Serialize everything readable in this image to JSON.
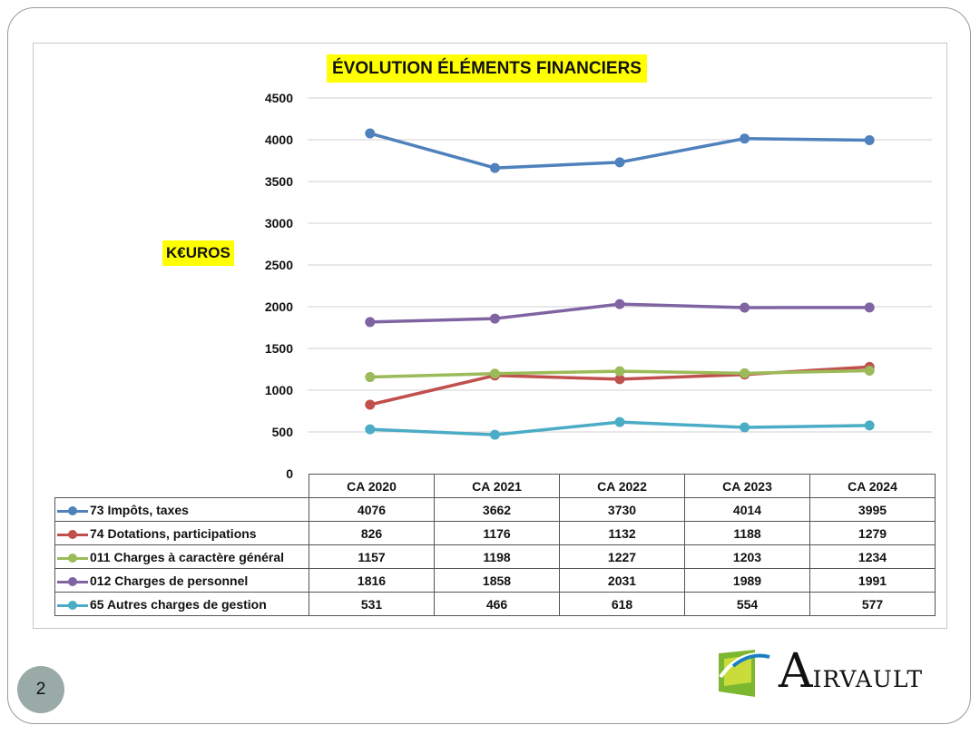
{
  "slide": {
    "page_number": "2",
    "logo": {
      "name": "airvault-logo",
      "first_letter": "A",
      "rest": "IRVAULT",
      "colors": [
        "#7cb82f",
        "#c9dc3c",
        "#1a7fc1"
      ]
    }
  },
  "chart_data": {
    "type": "line",
    "title": "ÉVOLUTION ÉLÉMENTS FINANCIERS",
    "ylabel": "K€UROS",
    "xlabel": "",
    "categories": [
      "CA 2020",
      "CA 2021",
      "CA 2022",
      "CA 2023",
      "CA 2024"
    ],
    "ylim": [
      0,
      4500
    ],
    "yticks": [
      "0",
      "500",
      "1000",
      "1500",
      "2000",
      "2500",
      "3000",
      "3500",
      "4000",
      "4500"
    ],
    "grid": true,
    "legend": "data-table",
    "series": [
      {
        "name": "73 Impôts, taxes",
        "color": "#4f81bd",
        "values": [
          4076,
          3662,
          3730,
          4014,
          3995
        ]
      },
      {
        "name": "74 Dotations, participations",
        "color": "#c0504d",
        "values": [
          826,
          1176,
          1132,
          1188,
          1279
        ]
      },
      {
        "name": "011 Charges à caractère général",
        "color": "#9bbb59",
        "values": [
          1157,
          1198,
          1227,
          1203,
          1234
        ]
      },
      {
        "name": "012 Charges de personnel",
        "color": "#8064a2",
        "values": [
          1816,
          1858,
          2031,
          1989,
          1991
        ]
      },
      {
        "name": "65 Autres charges de gestion",
        "color": "#4bacc6",
        "values": [
          531,
          466,
          618,
          554,
          577
        ]
      }
    ]
  }
}
